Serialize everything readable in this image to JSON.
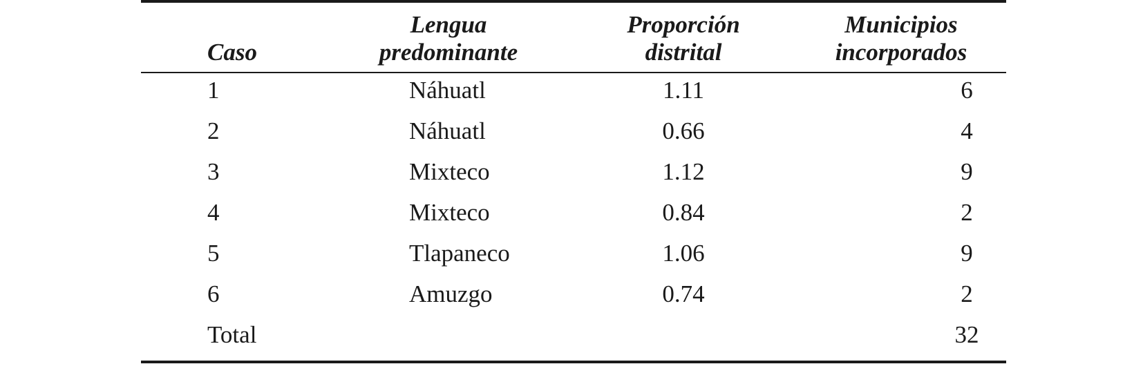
{
  "headers": {
    "caso": "Caso",
    "lengua_line1": "Lengua",
    "lengua_line2": "predominante",
    "proporcion_line1": "Proporción",
    "proporcion_line2": "distrital",
    "municipios_line1": "Municipios",
    "municipios_line2": "incorporados"
  },
  "rows": [
    {
      "caso": "1",
      "lengua": "Náhuatl",
      "proporcion": "1.11",
      "municipios": "6"
    },
    {
      "caso": "2",
      "lengua": "Náhuatl",
      "proporcion": "0.66",
      "municipios": "4"
    },
    {
      "caso": "3",
      "lengua": "Mixteco",
      "proporcion": "1.12",
      "municipios": "9"
    },
    {
      "caso": "4",
      "lengua": "Mixteco",
      "proporcion": "0.84",
      "municipios": "2"
    },
    {
      "caso": "5",
      "lengua": "Tlapaneco",
      "proporcion": "1.06",
      "municipios": "9"
    },
    {
      "caso": "6",
      "lengua": "Amuzgo",
      "proporcion": "0.74",
      "municipios": "2"
    }
  ],
  "total": {
    "label": "Total",
    "municipios": "32"
  }
}
